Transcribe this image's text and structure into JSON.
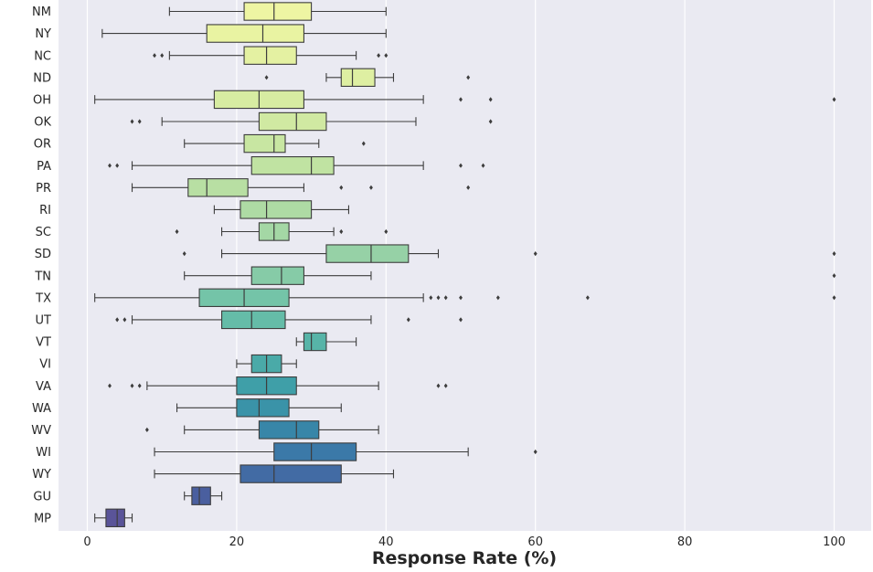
{
  "chart_data": {
    "type": "boxplot",
    "orientation": "horizontal",
    "title": "",
    "xlabel": "Response Rate (%)",
    "ylabel": "",
    "xlim": [
      -4,
      105
    ],
    "xticks": [
      0,
      20,
      40,
      60,
      80,
      100
    ],
    "grid": true,
    "legend": "none",
    "colors": {
      "background": "#EAEAF2",
      "grid": "#FFFFFF",
      "box_edge": "#3D3D3D",
      "palette_start": "#F4F8A6",
      "palette_mid": "#67C0A4",
      "palette_end": "#5A5499"
    },
    "boxes": [
      {
        "category": "NM",
        "whisker_low": 11,
        "q1": 21,
        "median": 25,
        "q3": 30,
        "whisker_high": 40,
        "outliers": [],
        "color": "#EEF5A3"
      },
      {
        "category": "NY",
        "whisker_low": 2,
        "q1": 16,
        "median": 23.5,
        "q3": 29,
        "whisker_high": 40,
        "outliers": [],
        "color": "#E9F3A2"
      },
      {
        "category": "NC",
        "whisker_low": 11,
        "q1": 21,
        "median": 24,
        "q3": 28,
        "whisker_high": 36,
        "outliers": [
          9,
          10,
          39,
          40
        ],
        "color": "#E4F1A2"
      },
      {
        "category": "ND",
        "whisker_low": 32,
        "q1": 34,
        "median": 35.5,
        "q3": 38.5,
        "whisker_high": 41,
        "outliers": [
          24,
          51
        ],
        "color": "#DEEFA2"
      },
      {
        "category": "OH",
        "whisker_low": 1,
        "q1": 17,
        "median": 23,
        "q3": 29,
        "whisker_high": 45,
        "outliers": [
          50,
          54,
          100
        ],
        "color": "#D7ECA2"
      },
      {
        "category": "OK",
        "whisker_low": 10,
        "q1": 23,
        "median": 28,
        "q3": 32,
        "whisker_high": 44,
        "outliers": [
          6,
          7,
          54
        ],
        "color": "#D0E9A2"
      },
      {
        "category": "OR",
        "whisker_low": 13,
        "q1": 21,
        "median": 25,
        "q3": 26.5,
        "whisker_high": 31,
        "outliers": [
          37
        ],
        "color": "#C8E6A2"
      },
      {
        "category": "PA",
        "whisker_low": 6,
        "q1": 22,
        "median": 30,
        "q3": 33,
        "whisker_high": 45,
        "outliers": [
          3,
          4,
          50,
          53
        ],
        "color": "#C0E3A2"
      },
      {
        "category": "PR",
        "whisker_low": 6,
        "q1": 13.5,
        "median": 16,
        "q3": 21.5,
        "whisker_high": 29,
        "outliers": [
          34,
          38,
          51
        ],
        "color": "#B8DFA3"
      },
      {
        "category": "RI",
        "whisker_low": 17,
        "q1": 20.5,
        "median": 24,
        "q3": 30,
        "whisker_high": 35,
        "outliers": [],
        "color": "#AEDBA4"
      },
      {
        "category": "SC",
        "whisker_low": 18,
        "q1": 23,
        "median": 25,
        "q3": 27,
        "whisker_high": 33,
        "outliers": [
          12,
          34,
          40
        ],
        "color": "#A4D7A5"
      },
      {
        "category": "SD",
        "whisker_low": 18,
        "q1": 32,
        "median": 38,
        "q3": 43,
        "whisker_high": 47,
        "outliers": [
          13,
          60,
          100
        ],
        "color": "#96D1A6"
      },
      {
        "category": "TN",
        "whisker_low": 13,
        "q1": 22,
        "median": 26,
        "q3": 29,
        "whisker_high": 38,
        "outliers": [
          100
        ],
        "color": "#86CBA7"
      },
      {
        "category": "TX",
        "whisker_low": 1,
        "q1": 15,
        "median": 21,
        "q3": 27,
        "whisker_high": 45,
        "outliers": [
          46,
          47,
          48,
          50,
          55,
          67,
          100
        ],
        "color": "#74C4A8"
      },
      {
        "category": "UT",
        "whisker_low": 6,
        "q1": 18,
        "median": 22,
        "q3": 26.5,
        "whisker_high": 38,
        "outliers": [
          4,
          5,
          43,
          50
        ],
        "color": "#65BCA8"
      },
      {
        "category": "VT",
        "whisker_low": 28,
        "q1": 29,
        "median": 30,
        "q3": 32,
        "whisker_high": 36,
        "outliers": [],
        "color": "#57B4A8"
      },
      {
        "category": "VI",
        "whisker_low": 20,
        "q1": 22,
        "median": 24,
        "q3": 26,
        "whisker_high": 28,
        "outliers": [],
        "color": "#4AAAA8"
      },
      {
        "category": "VA",
        "whisker_low": 8,
        "q1": 20,
        "median": 24,
        "q3": 28,
        "whisker_high": 39,
        "outliers": [
          3,
          6,
          7,
          47,
          48
        ],
        "color": "#3F9FA8"
      },
      {
        "category": "WA",
        "whisker_low": 12,
        "q1": 20,
        "median": 23,
        "q3": 27,
        "whisker_high": 34,
        "outliers": [],
        "color": "#3A93A8"
      },
      {
        "category": "WV",
        "whisker_low": 13,
        "q1": 23,
        "median": 28,
        "q3": 31,
        "whisker_high": 39,
        "outliers": [
          8
        ],
        "color": "#3886A8"
      },
      {
        "category": "WI",
        "whisker_low": 9,
        "q1": 25,
        "median": 30,
        "q3": 36,
        "whisker_high": 51,
        "outliers": [
          60
        ],
        "color": "#3B79A8"
      },
      {
        "category": "WY",
        "whisker_low": 9,
        "q1": 20.5,
        "median": 25,
        "q3": 34,
        "whisker_high": 41,
        "outliers": [],
        "color": "#426BA4"
      },
      {
        "category": "GU",
        "whisker_low": 13,
        "q1": 14,
        "median": 15,
        "q3": 16.5,
        "whisker_high": 18,
        "outliers": [],
        "color": "#4A5F9F"
      },
      {
        "category": "MP",
        "whisker_low": 1,
        "q1": 2.5,
        "median": 4,
        "q3": 5,
        "whisker_high": 6,
        "outliers": [],
        "color": "#5A5499"
      }
    ]
  }
}
